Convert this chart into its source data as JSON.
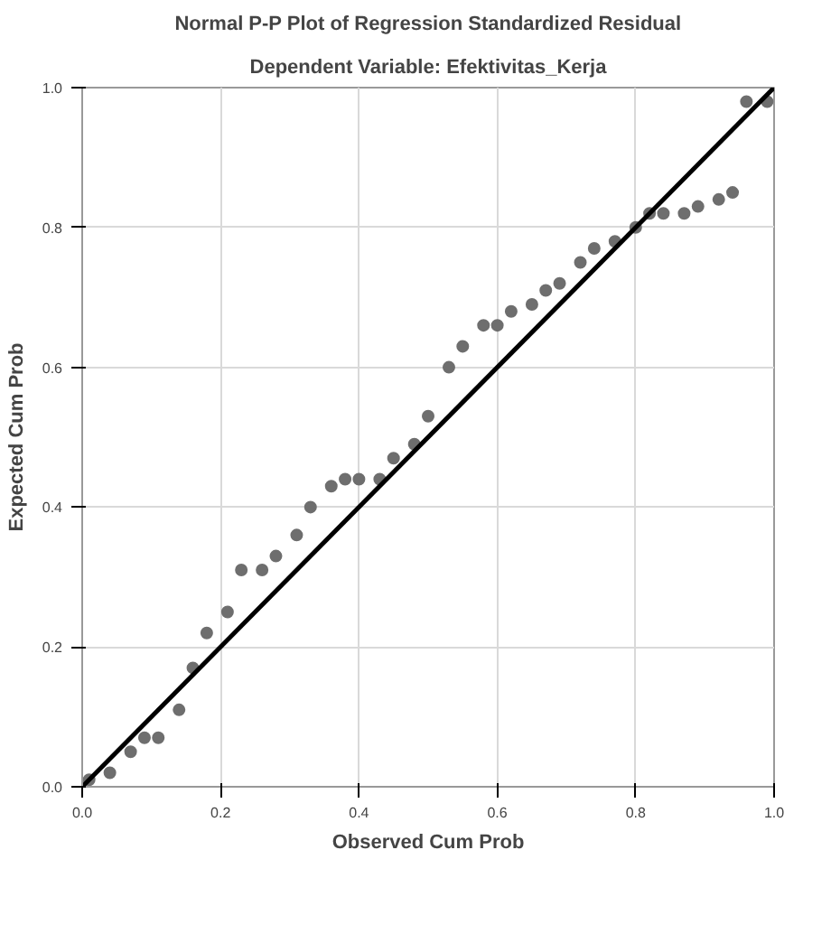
{
  "chart_data": {
    "type": "scatter",
    "title": "Normal P-P Plot of Regression Standardized Residual",
    "subtitle": "Dependent Variable: Efektivitas_Kerja",
    "xlabel": "Observed Cum Prob",
    "ylabel": "Expected Cum Prob",
    "xlim": [
      0,
      1
    ],
    "ylim": [
      0,
      1
    ],
    "xticks": [
      {
        "value": 0,
        "label": "0.0"
      },
      {
        "value": 0.2,
        "label": "0.2"
      },
      {
        "value": 0.4,
        "label": "0.4"
      },
      {
        "value": 0.6,
        "label": "0.6"
      },
      {
        "value": 0.8,
        "label": "0.8"
      },
      {
        "value": 1,
        "label": "1.0"
      }
    ],
    "yticks": [
      {
        "value": 0,
        "label": "0.0"
      },
      {
        "value": 0.2,
        "label": "0.2"
      },
      {
        "value": 0.4,
        "label": "0.4"
      },
      {
        "value": 0.6,
        "label": "0.6"
      },
      {
        "value": 0.8,
        "label": "0.8"
      },
      {
        "value": 1,
        "label": "1.0"
      }
    ],
    "grid": true,
    "series": [
      {
        "marker": "circle",
        "color": "#6e6e6e",
        "x": [
          0.01,
          0.04,
          0.07,
          0.09,
          0.11,
          0.14,
          0.16,
          0.18,
          0.21,
          0.23,
          0.26,
          0.28,
          0.31,
          0.33,
          0.36,
          0.38,
          0.4,
          0.43,
          0.45,
          0.48,
          0.5,
          0.53,
          0.55,
          0.58,
          0.6,
          0.62,
          0.65,
          0.67,
          0.69,
          0.72,
          0.74,
          0.77,
          0.8,
          0.82,
          0.84,
          0.87,
          0.89,
          0.92,
          0.94,
          0.96,
          0.99
        ],
        "values": [
          0.01,
          0.02,
          0.05,
          0.07,
          0.07,
          0.11,
          0.17,
          0.22,
          0.25,
          0.31,
          0.31,
          0.33,
          0.36,
          0.4,
          0.43,
          0.44,
          0.44,
          0.44,
          0.47,
          0.49,
          0.53,
          0.6,
          0.63,
          0.66,
          0.66,
          0.68,
          0.69,
          0.71,
          0.72,
          0.75,
          0.77,
          0.78,
          0.8,
          0.82,
          0.82,
          0.82,
          0.83,
          0.84,
          0.85,
          0.98,
          0.98
        ]
      },
      {
        "type": "line",
        "marker": "none",
        "color": "#000000",
        "x": [
          0,
          1
        ],
        "values": [
          0,
          1
        ]
      }
    ]
  }
}
